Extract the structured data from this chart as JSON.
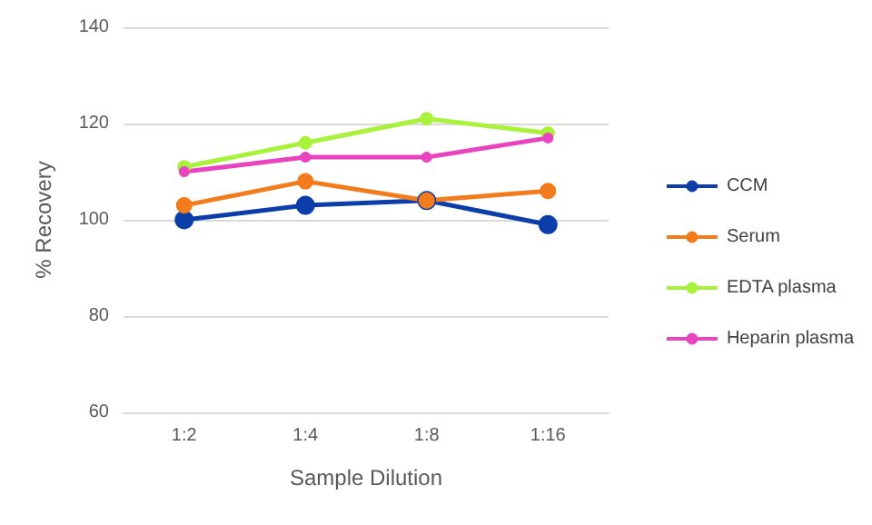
{
  "chart_data": {
    "type": "line",
    "xlabel": "Sample Dilution",
    "ylabel": "% Recovery",
    "categories": [
      "1:2",
      "1:4",
      "1:8",
      "1:16"
    ],
    "series": [
      {
        "name": "CCM",
        "color": "#0b3ea8",
        "values": [
          100,
          103,
          104,
          99
        ]
      },
      {
        "name": "Serum",
        "color": "#f27b1c",
        "values": [
          103,
          108,
          104,
          106
        ]
      },
      {
        "name": "EDTA plasma",
        "color": "#a8f23c",
        "values": [
          111,
          116,
          121,
          118
        ]
      },
      {
        "name": "Heparin plasma",
        "color": "#e844c0",
        "values": [
          110,
          113,
          113,
          117
        ]
      }
    ],
    "ylim": [
      60,
      140
    ],
    "yticks": [
      60,
      80,
      100,
      120,
      140
    ],
    "grid": "y",
    "legend": "right",
    "marker": "circle",
    "line_style": "solid"
  }
}
